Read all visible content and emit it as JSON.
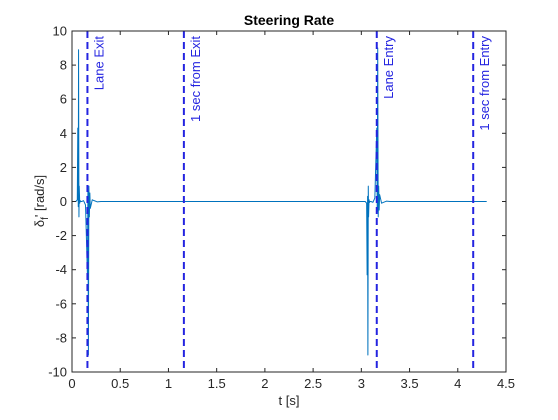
{
  "chart_data": {
    "type": "line",
    "title": "Steering Rate",
    "xlabel": "t [s]",
    "ylabel_main": "δ",
    "ylabel_sub": "f",
    "ylabel_rest": "' [rad/s]",
    "xlim": [
      0,
      4.5
    ],
    "ylim": [
      -10,
      10
    ],
    "x_ticks": [
      0,
      0.5,
      1,
      1.5,
      2,
      2.5,
      3,
      3.5,
      4,
      4.5
    ],
    "x_tick_labels": [
      "0",
      "0.5",
      "1",
      "1.5",
      "2",
      "2.5",
      "3",
      "3.5",
      "4",
      "4.5"
    ],
    "y_ticks": [
      -10,
      -8,
      -6,
      -4,
      -2,
      0,
      2,
      4,
      6,
      8,
      10
    ],
    "y_tick_labels": [
      "-10",
      "-8",
      "-6",
      "-4",
      "-2",
      "0",
      "2",
      "4",
      "6",
      "8",
      "10"
    ],
    "grid": false,
    "line_color": "#0072BD",
    "annotation_color": "#2424E0",
    "vertical_markers": [
      {
        "x": 0.16,
        "label": "Lane Exit"
      },
      {
        "x": 1.16,
        "label": "1 sec from Exit"
      },
      {
        "x": 3.16,
        "label": "Lane Entry"
      },
      {
        "x": 4.16,
        "label": "1 sec from Entry"
      }
    ],
    "series": [
      {
        "x": [
          0,
          0.04,
          0.055,
          0.06,
          0.065,
          0.068,
          0.072,
          0.075,
          0.08,
          0.085,
          0.09,
          0.1,
          0.12,
          0.14,
          0.16,
          0.165,
          0.17,
          0.175,
          0.18,
          0.185,
          0.19,
          0.2,
          0.21,
          0.23,
          0.26,
          0.3,
          0.4,
          0.6,
          1.0,
          2.0,
          3.0,
          3.04,
          3.055,
          3.06,
          3.065,
          3.068,
          3.072,
          3.075,
          3.08,
          3.085,
          3.09,
          3.1,
          3.12,
          3.14,
          3.16,
          3.165,
          3.17,
          3.175,
          3.18,
          3.185,
          3.19,
          3.2,
          3.21,
          3.23,
          3.26,
          3.3,
          3.4,
          3.6,
          4.0,
          4.3
        ],
        "y": [
          0,
          0,
          0.1,
          4.3,
          -0.3,
          8.9,
          -0.9,
          0.9,
          -0.1,
          0.05,
          0,
          0,
          0.05,
          -0.2,
          -4.3,
          0.6,
          -9.0,
          0.9,
          -0.9,
          0.5,
          -0.4,
          -0.15,
          0.1,
          0.05,
          -0.02,
          0.0,
          0,
          0,
          0,
          0,
          0,
          0,
          -0.1,
          -4.3,
          0.3,
          -9.0,
          0.9,
          -0.9,
          0.1,
          -0.05,
          0,
          0,
          -0.05,
          0.2,
          4.3,
          -0.6,
          9.0,
          -0.9,
          0.9,
          -0.5,
          0.4,
          0.15,
          -0.1,
          -0.05,
          0.02,
          0.0,
          0,
          0,
          0,
          0
        ]
      }
    ]
  }
}
